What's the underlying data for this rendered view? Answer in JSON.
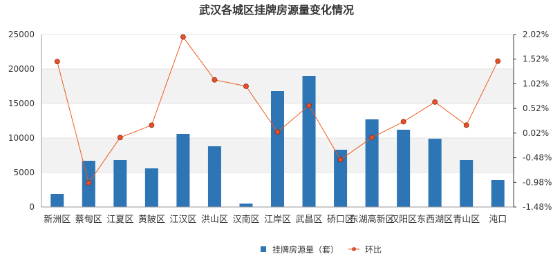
{
  "chart_data": {
    "type": "bar",
    "title": "武汉各城区挂牌房源量变化情况",
    "categories": [
      "新洲区",
      "蔡甸区",
      "江夏区",
      "黄陂区",
      "江汉区",
      "洪山区",
      "汉南区",
      "江岸区",
      "武昌区",
      "硚口区",
      "东湖高新区",
      "汉阳区",
      "东西湖区",
      "青山区",
      "沌口"
    ],
    "series": [
      {
        "name": "挂牌房源量（套）",
        "type": "bar",
        "axis": "left",
        "color": "#2e75b6",
        "values": [
          1900,
          6700,
          6800,
          5600,
          10600,
          8800,
          500,
          16800,
          19000,
          8300,
          12700,
          11200,
          9900,
          6800,
          3900
        ]
      },
      {
        "name": "环比",
        "type": "line",
        "axis": "right",
        "color": "#f05a1e",
        "marker_fill": "#e8502a",
        "values": [
          1.47,
          -0.99,
          -0.07,
          0.18,
          1.97,
          1.1,
          0.97,
          0.04,
          0.58,
          -0.52,
          -0.07,
          0.25,
          0.65,
          0.18,
          1.48
        ]
      }
    ],
    "y_left": {
      "min": 0,
      "max": 25000,
      "ticks": [
        "0",
        "5000",
        "10000",
        "15000",
        "20000",
        "25000"
      ]
    },
    "y_right": {
      "min": -1.48,
      "max": 2.02,
      "ticks": [
        "-1.48%",
        "-0.98%",
        "-0.48%",
        "0.02%",
        "0.52%",
        "1.02%",
        "1.52%",
        "2.02%"
      ]
    },
    "grid": true,
    "legend_position": "bottom"
  }
}
